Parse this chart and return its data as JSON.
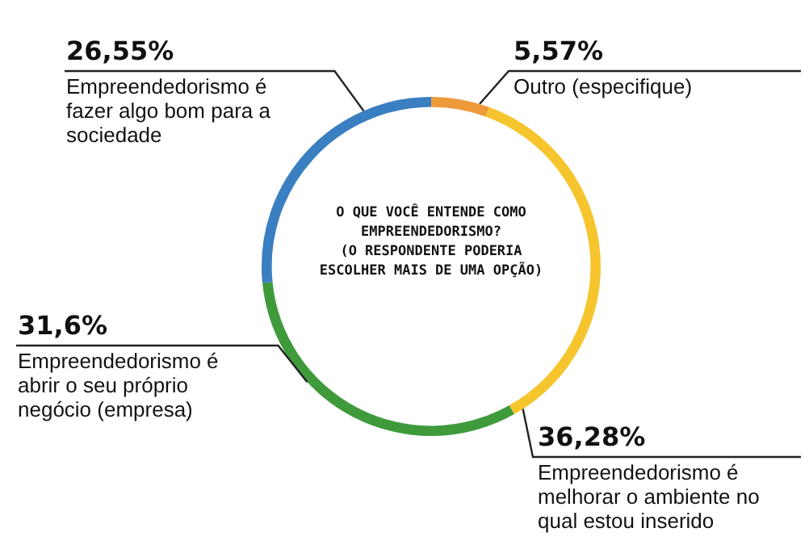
{
  "chart_data": {
    "type": "donut",
    "title": "O QUE VOCÊ ENTENDE COMO EMPREENDEDORISMO?",
    "subtitle": "(O RESPONDENTE PODERIA ESCOLHER MAIS DE UMA OPÇÃO)",
    "categories": [
      "Outro (especifique)",
      "Empreendedorismo é melhorar o ambiente no qual estou inserido",
      "Empreendedorismo é abrir o seu próprio negócio (empresa)",
      "Empreendedorismo é fazer algo bom para a sociedade"
    ],
    "values": [
      5.57,
      36.28,
      31.6,
      26.55
    ],
    "value_labels": [
      "5,57%",
      "36,28%",
      "31,6%",
      "26,55%"
    ],
    "colors": [
      "#ee9a3a",
      "#f6c52e",
      "#3f9a3c",
      "#3a7fc1"
    ],
    "legend": false
  }
}
